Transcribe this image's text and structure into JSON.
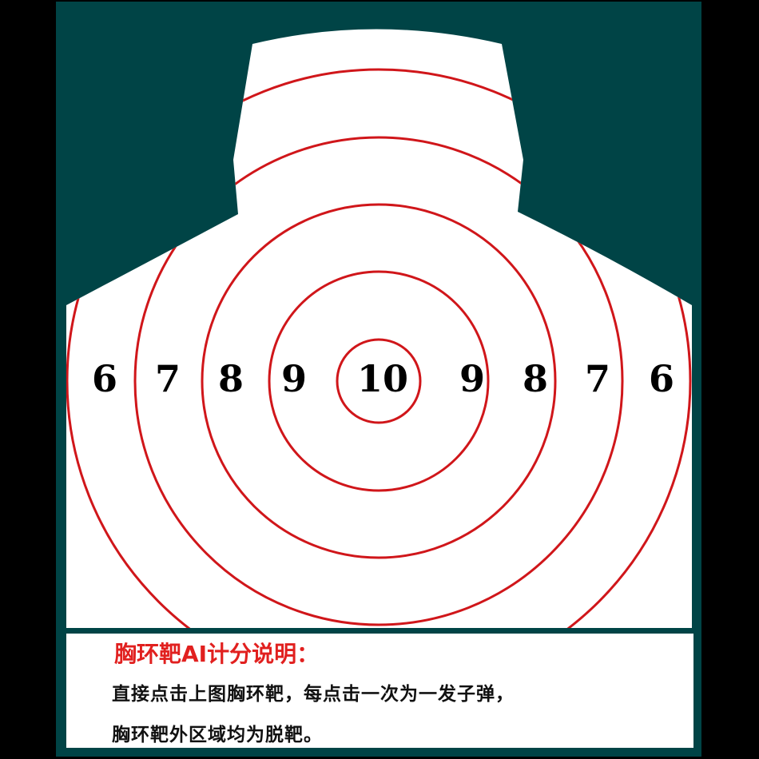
{
  "colors": {
    "frame_background": "#004446",
    "outer_border": "#000000",
    "target_fill": "#ffffff",
    "ring_color": "#d0161a",
    "number_color": "#000000",
    "title_color": "#e1201f",
    "text_color": "#111111"
  },
  "target": {
    "ring_scores": [
      "10",
      "9",
      "8",
      "7",
      "6"
    ],
    "left_labels": [
      "6",
      "7",
      "8",
      "9"
    ],
    "center_label": "10",
    "right_labels": [
      "9",
      "8",
      "7",
      "6"
    ]
  },
  "info": {
    "title": "胸环靶AI计分说明：",
    "line_1": "直接点击上图胸环靶，每点击一次为一发子弹，",
    "line_2": "胸环靶外区域均为脱靶。"
  }
}
